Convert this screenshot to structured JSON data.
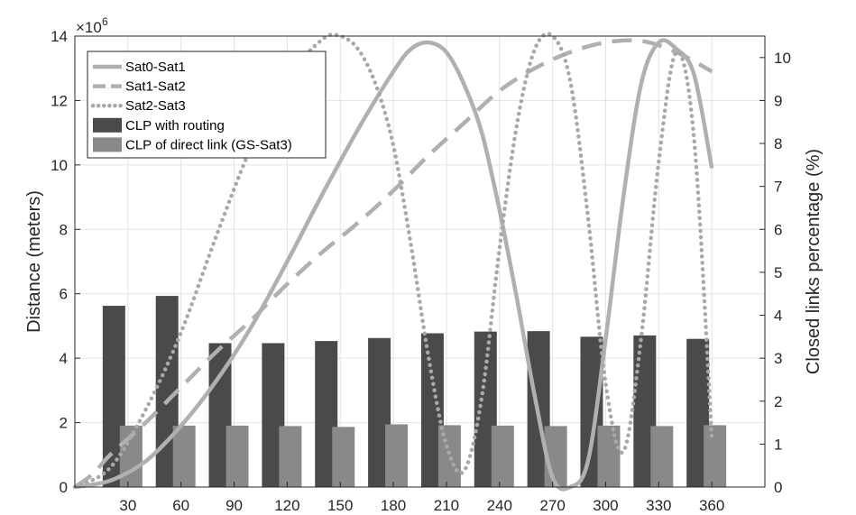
{
  "chart_data": {
    "type": "bar+line",
    "x_ticks": [
      30,
      60,
      90,
      120,
      150,
      180,
      210,
      240,
      270,
      300,
      330,
      360
    ],
    "xlim": [
      0,
      390
    ],
    "ylabel_left": "Distance (meters)",
    "ylabel_right": "Closed links percentage (%)",
    "ylim_left": [
      0,
      14
    ],
    "ylim_right": [
      0,
      10.5
    ],
    "y_left_ticks": [
      0,
      2,
      4,
      6,
      8,
      10,
      12,
      14
    ],
    "y_right_ticks": [
      0,
      1,
      2,
      3,
      4,
      5,
      6,
      7,
      8,
      9,
      10
    ],
    "y_left_exponent": "×10",
    "y_left_exponent_power": "6",
    "grid": true,
    "legend_position": "top-left",
    "legend": [
      "Sat0-Sat1",
      "Sat1-Sat2",
      "Sat2-Sat3",
      "CLP with routing",
      "CLP of direct link (GS-Sat3)"
    ],
    "bar_series": [
      {
        "name": "CLP with routing",
        "color": "#4a4a4a",
        "axis": "right",
        "values": [
          4.22,
          4.45,
          3.35,
          3.35,
          3.4,
          3.47,
          3.58,
          3.62,
          3.63,
          3.5,
          3.53,
          3.45
        ]
      },
      {
        "name": "CLP of direct link (GS-Sat3)",
        "color": "#898989",
        "axis": "right",
        "values": [
          1.43,
          1.43,
          1.43,
          1.42,
          1.4,
          1.46,
          1.44,
          1.43,
          1.42,
          1.43,
          1.42,
          1.44
        ]
      }
    ],
    "line_series": [
      {
        "name": "Sat0-Sat1",
        "style": "solid",
        "color": "#b0b0b0",
        "axis": "left",
        "x": [
          0,
          20,
          40,
          60,
          80,
          100,
          120,
          140,
          160,
          180,
          190,
          200,
          210,
          220,
          230,
          240,
          250,
          260,
          270,
          280,
          290,
          300,
          310,
          320,
          330,
          340,
          350,
          360
        ],
        "y": [
          0,
          0.2,
          0.8,
          1.9,
          3.3,
          5.0,
          7.0,
          9.1,
          11.1,
          12.9,
          13.6,
          13.8,
          13.5,
          12.5,
          11.0,
          8.6,
          5.8,
          2.8,
          0.3,
          0,
          0.8,
          4.6,
          9.0,
          12.5,
          13.8,
          13.6,
          12.8,
          9.9
        ]
      },
      {
        "name": "Sat1-Sat2",
        "style": "dashed",
        "color": "#b0b0b0",
        "axis": "left",
        "x": [
          0,
          10,
          20,
          40,
          60,
          80,
          100,
          120,
          140,
          160,
          180,
          200,
          220,
          240,
          260,
          280,
          300,
          320,
          340,
          360
        ],
        "y": [
          0,
          0.4,
          1.0,
          2.0,
          3.1,
          4.2,
          5.2,
          6.3,
          7.3,
          8.2,
          9.2,
          10.3,
          11.3,
          12.3,
          13.0,
          13.5,
          13.8,
          13.85,
          13.5,
          12.9
        ]
      },
      {
        "name": "Sat2-Sat3",
        "style": "dotted",
        "color": "#a8a8a8",
        "axis": "left",
        "x": [
          0,
          20,
          40,
          60,
          80,
          100,
          120,
          140,
          150,
          160,
          170,
          180,
          190,
          200,
          210,
          220,
          230,
          240,
          250,
          260,
          270,
          280,
          290,
          300,
          310,
          320,
          330,
          340,
          350,
          360
        ],
        "y": [
          0,
          0.6,
          2.4,
          4.8,
          7.8,
          10.6,
          12.7,
          13.9,
          14.0,
          13.6,
          12.5,
          10.6,
          7.5,
          4.0,
          1.3,
          0.5,
          2.8,
          7.4,
          11.3,
          13.6,
          14.0,
          12.6,
          8.4,
          3.2,
          1.1,
          4.6,
          10.1,
          13.5,
          10.8,
          1.5
        ]
      }
    ]
  }
}
